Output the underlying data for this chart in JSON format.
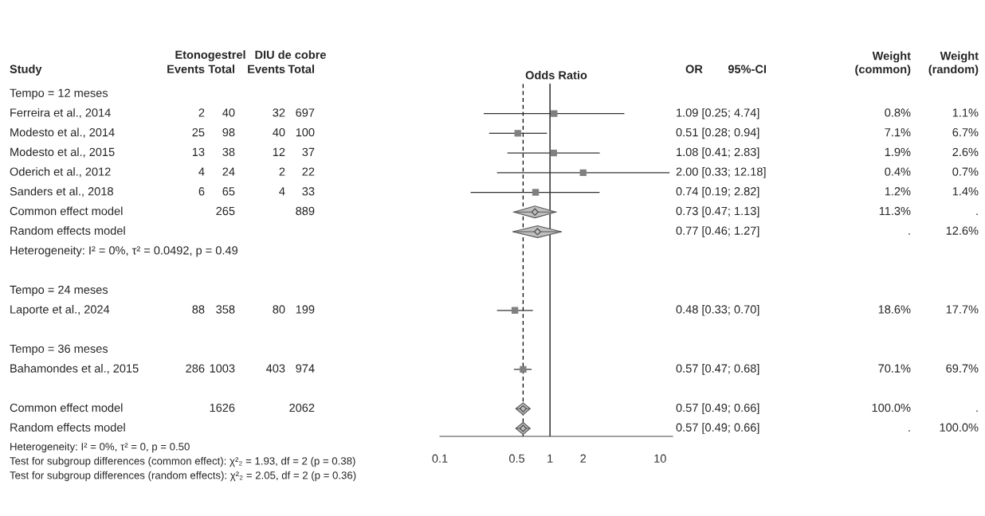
{
  "chart_data": [
    {
      "type": "other",
      "ylabel": "Study",
      "data_labels": true,
      "categories": [
        "Tempo = 12 meses",
        "Ferreira et al., 2014",
        "Modesto et al., 2014",
        "Modesto et al., 2015",
        "Oderich et al., 2012",
        "Sanders et al., 2018",
        "Common effect model",
        "Random effects model",
        "Heterogeneity: I² = 0%, τ² = 0.0492, p = 0.49",
        null,
        "Tempo = 24 meses",
        "Laporte et al., 2024",
        null,
        "Tempo = 36 meses",
        "Bahamondes et al., 2015",
        null,
        "Common effect model",
        "Random effects model"
      ],
      "series": [
        {
          "name": "Events",
          "values": [
            null,
            2,
            25,
            13,
            4,
            6,
            null,
            null,
            null,
            null,
            null,
            88,
            null,
            null,
            286,
            null,
            null,
            null
          ]
        },
        {
          "name": "Total",
          "values": [
            null,
            40,
            98,
            38,
            24,
            65,
            265,
            null,
            null,
            null,
            null,
            358,
            null,
            null,
            1003,
            null,
            1626,
            null
          ]
        },
        {
          "name": "Events",
          "values": [
            null,
            32,
            40,
            12,
            2,
            4,
            null,
            null,
            null,
            null,
            null,
            80,
            null,
            null,
            403,
            null,
            null,
            null
          ]
        },
        {
          "name": "Total",
          "values": [
            null,
            697,
            100,
            37,
            22,
            33,
            889,
            null,
            null,
            null,
            null,
            199,
            null,
            null,
            974,
            null,
            2062,
            null
          ]
        },
        {
          "name": "OR",
          "values": [
            null,
            1.09,
            0.51,
            1.08,
            2.0,
            0.74,
            0.73,
            0.77,
            null,
            null,
            null,
            0.48,
            null,
            null,
            0.57,
            null,
            0.57,
            0.57
          ],
          "value_labels": [
            null,
            "1.09 [0.25; 4.74]",
            "0.51 [0.28; 0.94]",
            "1.08 [0.41; 2.83]",
            "2.00 [0.33; 12.18]",
            "0.74 [0.19; 2.82]",
            "0.73 [0.47; 1.13]",
            "0.77 [0.46; 1.27]",
            null,
            null,
            null,
            "0.48 [0.33; 0.70]",
            null,
            null,
            "0.57 [0.47; 0.68]",
            null,
            "0.57 [0.49; 0.66]",
            "0.57 [0.49; 0.66]"
          ]
        },
        {
          "name": "Weight\n(common)",
          "values": [
            null,
            0.8,
            7.1,
            1.9,
            0.4,
            1.2,
            11.3,
            null,
            null,
            null,
            null,
            18.6,
            null,
            null,
            70.1,
            null,
            100.0,
            null
          ],
          "value_labels": [
            null,
            "0.8%",
            "7.1%",
            "1.9%",
            "0.4%",
            "1.2%",
            "11.3%",
            ".",
            null,
            null,
            null,
            "18.6%",
            null,
            null,
            "70.1%",
            null,
            "100.0%",
            "."
          ]
        },
        {
          "name": "Weight\n(random)",
          "values": [
            null,
            1.1,
            6.7,
            2.6,
            0.7,
            1.4,
            null,
            12.6,
            null,
            null,
            null,
            17.7,
            null,
            null,
            69.7,
            null,
            null,
            100.0
          ],
          "value_labels": [
            null,
            "1.1%",
            "6.7%",
            "2.6%",
            "0.7%",
            "1.4%",
            ".",
            "12.6%",
            null,
            null,
            null,
            "17.7%",
            null,
            null,
            "69.7%",
            null,
            ".",
            "100.0%"
          ]
        }
      ],
      "annotations": [
        "Etonogestrel",
        "DIU de cobre",
        "Heterogeneity: I² = 0%, τ² = 0, p = 0.50",
        "Test for subgroup differences (common effect): χ²₂ = 1.93, df = 2 (p = 0.38)",
        "Test for subgroup differences (random effects): χ²₂ = 2.05, df = 2 (p = 0.36)"
      ]
    },
    {
      "type": "scatter",
      "orientation": "horizontal",
      "xlabel": "Odds Ratio",
      "log": "x",
      "xlim": [
        0.1,
        13
      ],
      "xticks": [
        0.1,
        0.5,
        1,
        2,
        10
      ],
      "tick_labels": "x",
      "series": [
        {
          "marker": "square",
          "color": "#808080",
          "values": [
            null,
            1.09,
            0.51,
            1.08,
            2.0,
            0.74,
            null,
            null,
            null,
            null,
            null,
            0.48,
            null,
            null,
            0.57,
            null,
            null,
            null
          ],
          "errors": [
            null,
            [
              0.25,
              4.74
            ],
            [
              0.28,
              0.94
            ],
            [
              0.41,
              2.83
            ],
            [
              0.33,
              12.18
            ],
            [
              0.19,
              2.82
            ],
            null,
            null,
            null,
            null,
            null,
            [
              0.33,
              0.7
            ],
            null,
            null,
            [
              0.47,
              0.68
            ],
            null,
            null,
            null
          ]
        },
        {
          "marker": "diamond",
          "color": "#c0c0c0",
          "values": [
            null,
            null,
            null,
            null,
            null,
            null,
            0.73,
            0.77,
            null,
            null,
            null,
            null,
            null,
            null,
            null,
            null,
            0.57,
            0.57
          ],
          "errors": [
            null,
            null,
            null,
            null,
            null,
            null,
            [
              0.47,
              1.13
            ],
            [
              0.46,
              1.27
            ],
            null,
            null,
            null,
            null,
            null,
            null,
            null,
            null,
            [
              0.49,
              0.66
            ],
            [
              0.49,
              0.66
            ]
          ]
        }
      ],
      "ref_lines": [
        {
          "axis": "x",
          "value": 1,
          "color": "#000000",
          "line_style": "solid"
        },
        {
          "axis": "x",
          "value": 0.57,
          "color": "#000000",
          "line_style": "dashed"
        }
      ],
      "annotations": [
        "95%-CI"
      ]
    }
  ]
}
